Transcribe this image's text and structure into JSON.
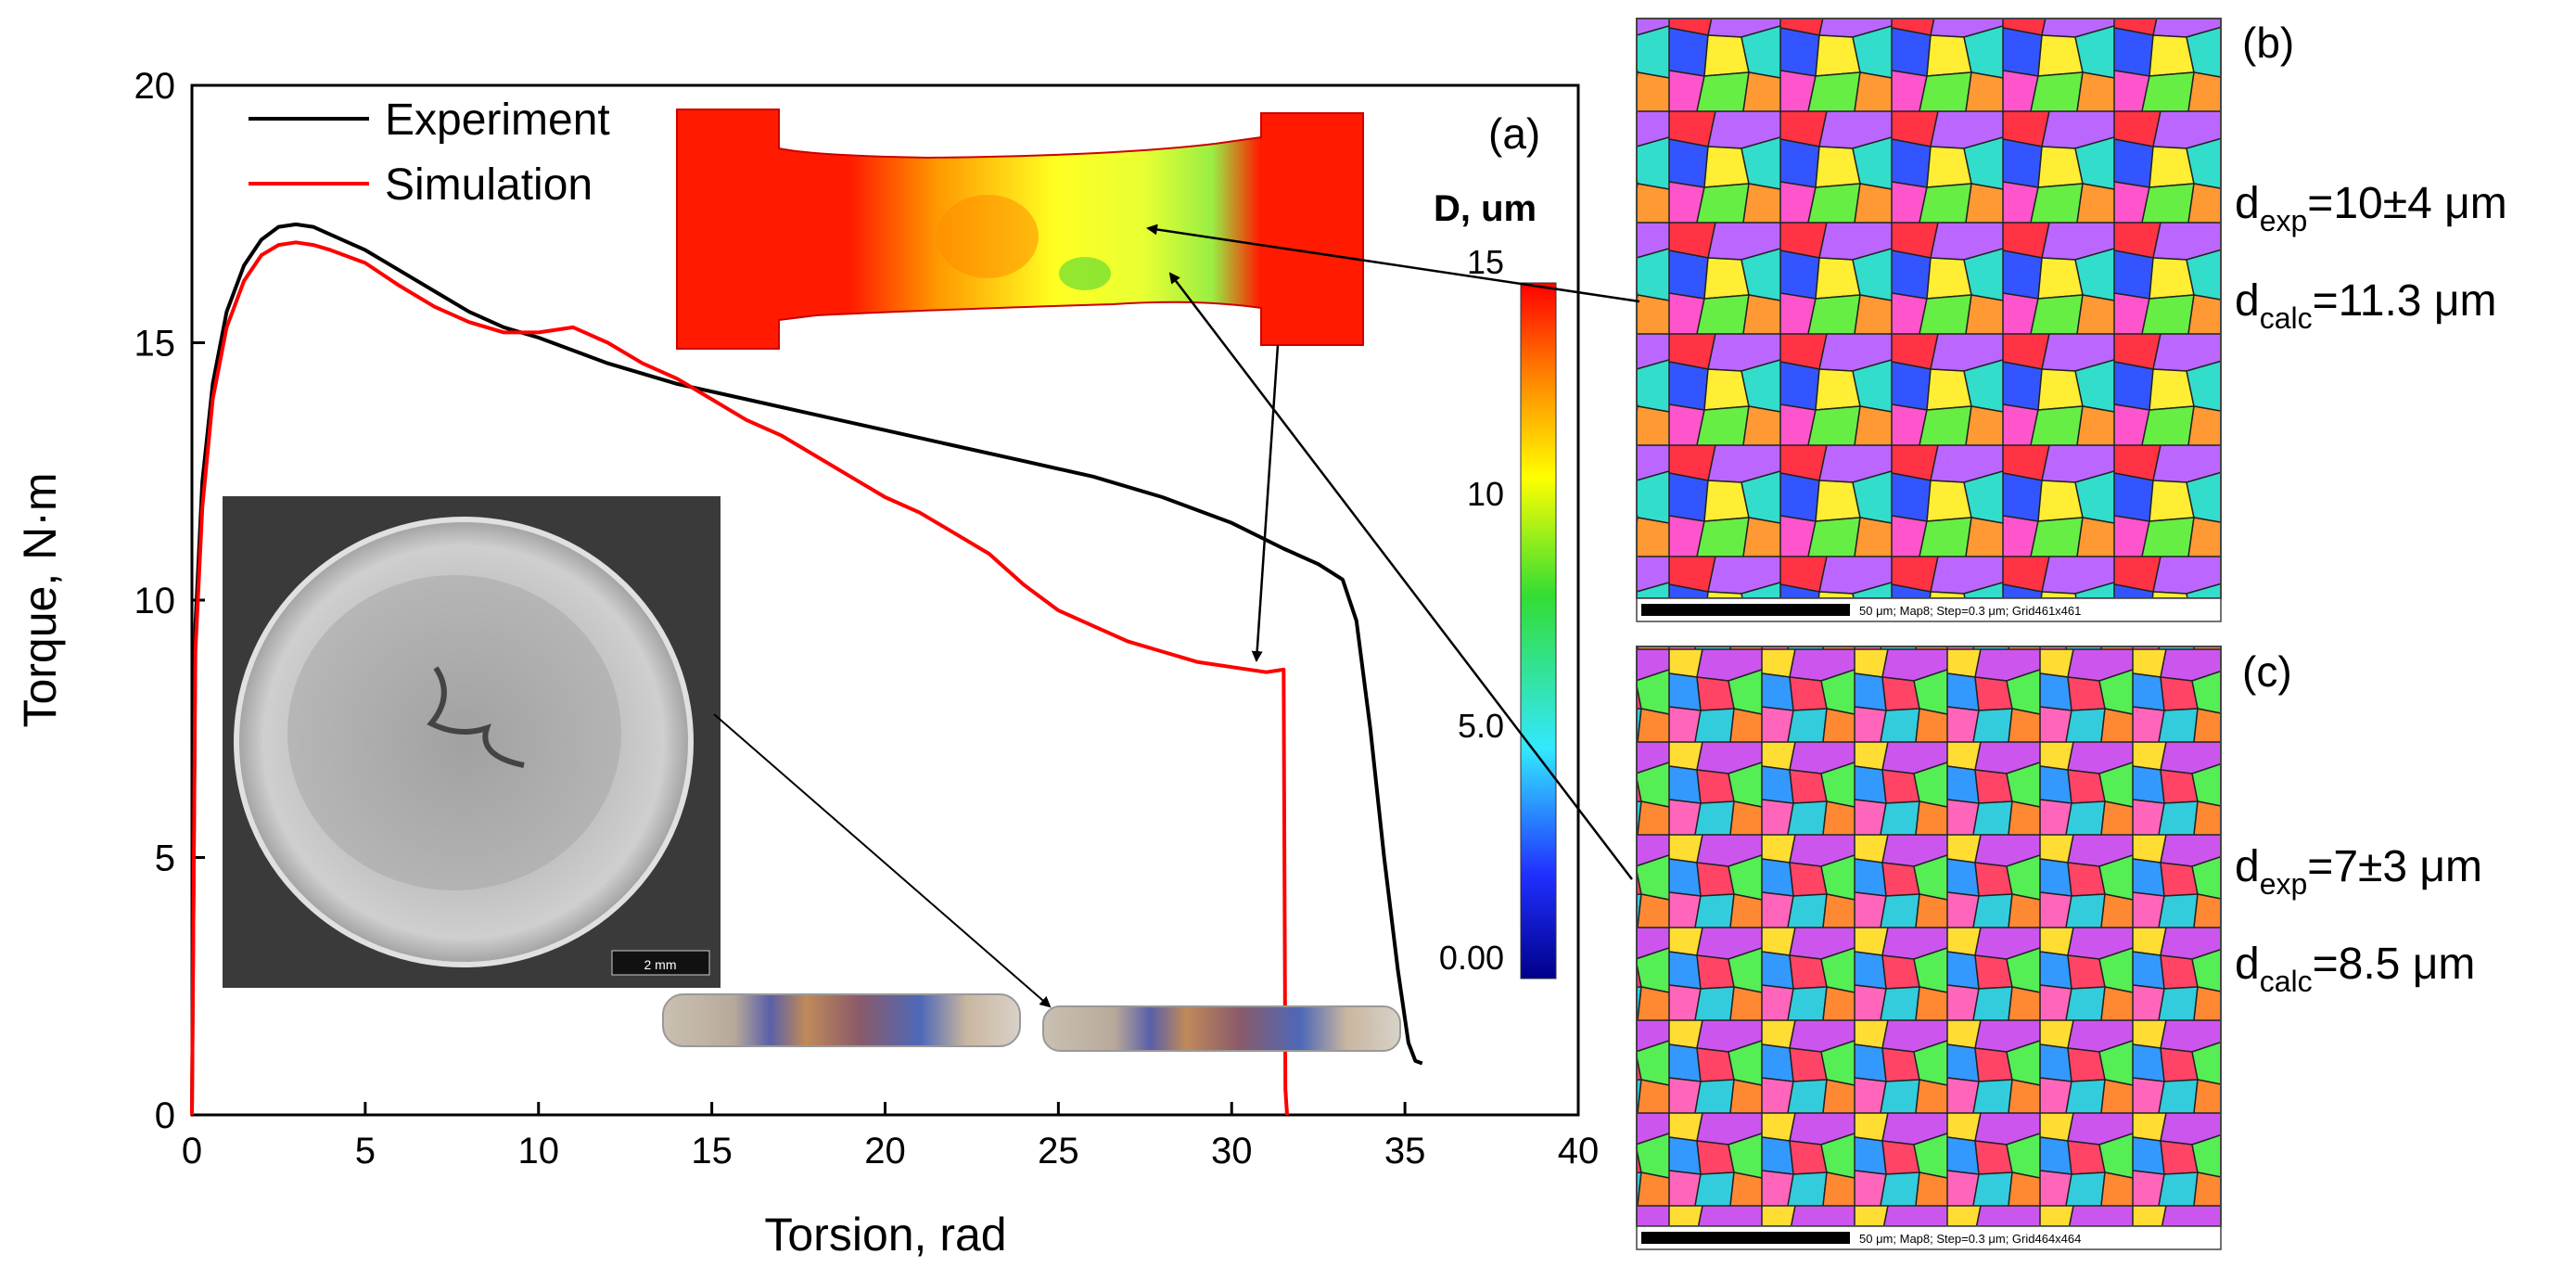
{
  "chart_data": {
    "type": "line",
    "xlabel": "Torsion, rad",
    "ylabel": "Torque, N·m",
    "xlim": [
      0,
      40
    ],
    "ylim": [
      0,
      20
    ],
    "x_ticks": [
      0,
      5,
      10,
      15,
      20,
      25,
      30,
      35,
      40
    ],
    "y_ticks": [
      0,
      5,
      10,
      15,
      20
    ],
    "panel_label": "(a)",
    "series": [
      {
        "name": "Experiment",
        "color": "#000000",
        "x": [
          0,
          0.1,
          0.3,
          0.6,
          1.0,
          1.5,
          2.0,
          2.5,
          3.0,
          3.5,
          4.0,
          5.0,
          6.0,
          7.0,
          8.0,
          9.0,
          10.0,
          12.0,
          14.0,
          16.0,
          18.0,
          20.0,
          22.0,
          24.0,
          26.0,
          28.0,
          30.0,
          31.5,
          32.5,
          33.2,
          33.6,
          34.0,
          34.4,
          34.8,
          35.1,
          35.3,
          35.5
        ],
        "y": [
          0,
          9.5,
          12.3,
          14.2,
          15.6,
          16.5,
          17.0,
          17.25,
          17.3,
          17.25,
          17.1,
          16.8,
          16.4,
          16.0,
          15.6,
          15.3,
          15.1,
          14.6,
          14.2,
          13.9,
          13.6,
          13.3,
          13.0,
          12.7,
          12.4,
          12.0,
          11.5,
          11.0,
          10.7,
          10.4,
          9.6,
          7.5,
          5.0,
          2.8,
          1.4,
          1.05,
          1.0
        ]
      },
      {
        "name": "Simulation",
        "color": "#ff0000",
        "x": [
          0,
          0.1,
          0.3,
          0.6,
          1.0,
          1.5,
          2.0,
          2.5,
          3.0,
          3.5,
          4.0,
          5.0,
          6.0,
          7.0,
          8.0,
          9.0,
          10.0,
          11.0,
          12.0,
          13.0,
          14.0,
          15.0,
          16.0,
          17.0,
          18.0,
          19.0,
          20.0,
          21.0,
          22.0,
          23.0,
          24.0,
          25.0,
          26.0,
          27.0,
          28.0,
          29.0,
          30.0,
          31.0,
          31.5,
          31.55,
          31.6
        ],
        "y": [
          0,
          9.0,
          11.8,
          13.9,
          15.3,
          16.2,
          16.7,
          16.9,
          16.95,
          16.9,
          16.8,
          16.55,
          16.1,
          15.7,
          15.4,
          15.2,
          15.2,
          15.3,
          15.0,
          14.6,
          14.3,
          13.9,
          13.5,
          13.2,
          12.8,
          12.4,
          12.0,
          11.7,
          11.3,
          10.9,
          10.3,
          9.8,
          9.5,
          9.2,
          9.0,
          8.8,
          8.7,
          8.6,
          8.65,
          0.5,
          0
        ]
      }
    ]
  },
  "colorbar": {
    "title": "D, um",
    "ticks": [
      "15",
      "10",
      "5.0",
      "0.00"
    ]
  },
  "panels": {
    "b": {
      "label": "(b)",
      "d_exp_sub": "exp",
      "d_exp_value": "=10±4 μm",
      "d_calc_sub": "calc",
      "d_calc_value": "=11.3 μm",
      "scale_text": "50 μm; Map8; Step=0.3 μm; Grid461x461"
    },
    "c": {
      "label": "(c)",
      "d_exp_sub": "exp",
      "d_exp_value": "=7±3 μm",
      "d_calc_sub": "calc",
      "d_calc_value": "=8.5 μm",
      "scale_text": "50 μm; Map8; Step=0.3 μm; Grid464x464"
    }
  },
  "sem": {
    "scale_text": "2 mm"
  },
  "common": {
    "d_letter": "d"
  }
}
